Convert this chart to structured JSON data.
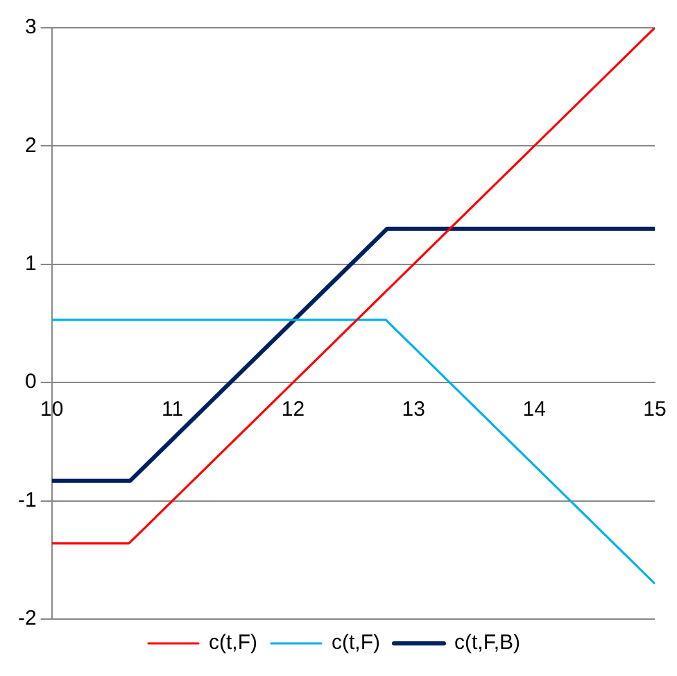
{
  "chart_data": {
    "type": "line",
    "xlim": [
      10,
      15
    ],
    "ylim": [
      -2,
      3
    ],
    "xticks": [
      10,
      11,
      12,
      13,
      14,
      15
    ],
    "yticks": [
      -2,
      -1,
      0,
      1,
      2,
      3
    ],
    "grid": "y",
    "legend": "bottom",
    "marker": "none",
    "line_style": "solid",
    "series": [
      {
        "name": "c(t,F)",
        "color": "#ff0000",
        "x": [
          10,
          10.64,
          15
        ],
        "values": [
          -1.36,
          -1.36,
          3
        ]
      },
      {
        "name": "c(t,F)",
        "color": "#00b0f0",
        "x": [
          10,
          12.77,
          15
        ],
        "values": [
          0.53,
          0.53,
          -1.7
        ]
      },
      {
        "name": "c(t,F,B)",
        "color": "#002060",
        "x": [
          10,
          10.65,
          12.78,
          15
        ],
        "values": [
          -0.83,
          -0.83,
          1.3,
          1.3
        ]
      }
    ]
  }
}
